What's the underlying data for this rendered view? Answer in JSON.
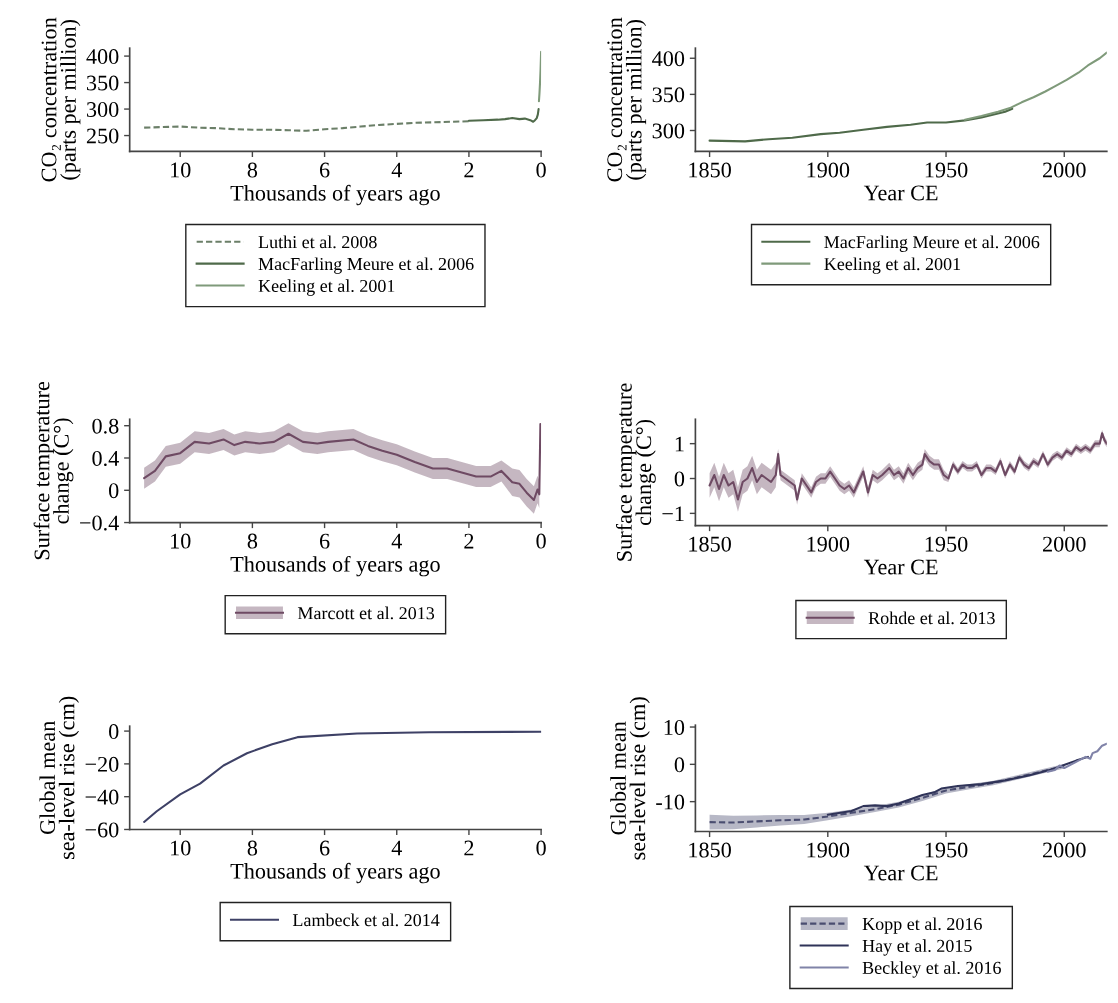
{
  "chart_data": [
    {
      "type": "line",
      "xlabel": "Thousands of years ago",
      "ylabel": "CO₂ concentration\n(parts per million)",
      "xlim": [
        11.4,
        0
      ],
      "xticks": [
        10,
        8,
        6,
        4,
        2,
        0
      ],
      "ylim": [
        220,
        415
      ],
      "yticks": [
        250,
        300,
        350,
        400
      ],
      "legend": "bottom",
      "series": [
        {
          "name": "Luthi et al. 2008",
          "color": "#6b7f68",
          "line_style": "dashed",
          "x": [
            11,
            10.5,
            10,
            9.5,
            9,
            8.5,
            8,
            7.5,
            7,
            6.5,
            6,
            5.5,
            5,
            4.5,
            4,
            3.5,
            3,
            2.5,
            2
          ],
          "values": [
            265,
            266,
            267,
            265,
            264,
            262,
            261,
            261,
            260,
            259,
            262,
            264,
            267,
            270,
            272,
            274,
            275,
            276,
            277
          ]
        },
        {
          "name": "MacFarling Meure et al. 2006",
          "color": "#4f6a4a",
          "line_style": "solid",
          "x": [
            2,
            1.6,
            1.2,
            1.0,
            0.8,
            0.6,
            0.45,
            0.3,
            0.22,
            0.17,
            0.12,
            0.09,
            0.07
          ],
          "values": [
            278,
            279,
            280,
            281,
            283,
            281,
            282,
            279,
            276,
            279,
            283,
            290,
            300
          ]
        },
        {
          "name": "Keeling et al. 2001",
          "color": "#7f9a7a",
          "line_style": "solid",
          "x": [
            0.06,
            0.045,
            0.03,
            0.015,
            0
          ],
          "values": [
            315,
            330,
            350,
            375,
            408
          ]
        }
      ]
    },
    {
      "type": "line",
      "xlabel": "Year CE",
      "ylabel": "CO₂ concentration\n(parts per million)",
      "xlim": [
        1844,
        2018
      ],
      "xticks": [
        1850,
        1900,
        1950,
        2000
      ],
      "ylim": [
        271,
        414
      ],
      "yticks": [
        300,
        350,
        400
      ],
      "legend": "bottom",
      "series": [
        {
          "name": "MacFarling Meure et al. 2006",
          "color": "#4f6a4a",
          "line_style": "solid",
          "x": [
            1850,
            1865,
            1875,
            1885,
            1897,
            1905,
            1915,
            1925,
            1935,
            1942,
            1950,
            1958,
            1965,
            1975,
            1978
          ],
          "values": [
            286,
            285,
            288,
            290,
            295,
            297,
            301,
            305,
            308,
            311,
            311,
            314,
            318,
            326,
            330
          ]
        },
        {
          "name": "Keeling et al. 2001",
          "color": "#7f9a7a",
          "line_style": "solid",
          "x": [
            1958,
            1965,
            1972,
            1977,
            1982,
            1987,
            1992,
            1996,
            2001,
            2006,
            2010,
            2015,
            2018
          ],
          "values": [
            315,
            320,
            326,
            331,
            339,
            346,
            354,
            361,
            370,
            380,
            390,
            400,
            408
          ]
        }
      ]
    },
    {
      "type": "line",
      "xlabel": "Thousands of years ago",
      "ylabel": "Surface temperature\nchange (C°)",
      "xlim": [
        11.4,
        0
      ],
      "xticks": [
        10,
        8,
        6,
        4,
        2,
        0
      ],
      "ylim": [
        -0.4,
        0.88
      ],
      "yticks": [
        {
          "value": -0.4,
          "label": "−0.4"
        },
        0,
        0.4,
        0.8
      ],
      "legend": "bottom",
      "series": [
        {
          "name": "Marcott et al. 2013",
          "color": "#6e4a63",
          "line_style": "solid",
          "x": [
            11,
            10.7,
            10.4,
            10,
            9.6,
            9.2,
            8.8,
            8.5,
            8.2,
            7.8,
            7.4,
            7.0,
            6.6,
            6.2,
            5.9,
            5.2,
            4.8,
            4.4,
            4.0,
            3.5,
            3.0,
            2.6,
            2.2,
            1.8,
            1.4,
            1.1,
            0.8,
            0.6,
            0.4,
            0.2,
            0.1,
            0.05,
            0.02
          ],
          "values": [
            0.15,
            0.24,
            0.42,
            0.46,
            0.6,
            0.58,
            0.63,
            0.56,
            0.6,
            0.58,
            0.6,
            0.7,
            0.6,
            0.58,
            0.6,
            0.63,
            0.55,
            0.49,
            0.44,
            0.35,
            0.27,
            0.27,
            0.22,
            0.17,
            0.17,
            0.24,
            0.1,
            0.08,
            -0.03,
            -0.12,
            0.01,
            -0.05,
            0.82
          ],
          "lower": [
            0.02,
            0.11,
            0.29,
            0.33,
            0.47,
            0.45,
            0.5,
            0.43,
            0.47,
            0.45,
            0.47,
            0.57,
            0.47,
            0.45,
            0.47,
            0.5,
            0.42,
            0.36,
            0.31,
            0.22,
            0.14,
            0.14,
            0.09,
            0.04,
            0.04,
            0.11,
            -0.07,
            -0.09,
            -0.2,
            -0.29,
            -0.16,
            -0.22,
            null
          ],
          "upper": [
            0.28,
            0.37,
            0.55,
            0.59,
            0.73,
            0.71,
            0.76,
            0.69,
            0.73,
            0.71,
            0.73,
            0.83,
            0.73,
            0.71,
            0.73,
            0.76,
            0.68,
            0.62,
            0.57,
            0.48,
            0.4,
            0.4,
            0.35,
            0.3,
            0.3,
            0.37,
            0.27,
            0.25,
            0.14,
            0.05,
            0.18,
            0.12,
            null
          ]
        }
      ]
    },
    {
      "type": "line",
      "xlabel": "Year CE",
      "ylabel": "Surface temperature\nchange (C°)",
      "xlim": [
        1844,
        2018
      ],
      "xticks": [
        1850,
        1900,
        1950,
        2000
      ],
      "ylim": [
        -1.35,
        1.7
      ],
      "yticks": [
        {
          "value": -1,
          "label": "−1"
        },
        0,
        1
      ],
      "legend": "bottom",
      "series": [
        {
          "name": "Rohde et al. 2013",
          "color": "#6e4a63",
          "line_style": "solid",
          "x": [
            1850,
            1852,
            1854,
            1856,
            1858,
            1860,
            1862,
            1864,
            1866,
            1868,
            1870,
            1872,
            1874,
            1876,
            1878,
            1879,
            1880,
            1882,
            1884,
            1886,
            1887,
            1889,
            1891,
            1893,
            1895,
            1897,
            1899,
            1901,
            1903,
            1905,
            1907,
            1909,
            1911,
            1913,
            1915,
            1917,
            1919,
            1921,
            1923,
            1926,
            1928,
            1930,
            1932,
            1934,
            1936,
            1938,
            1940,
            1941,
            1943,
            1945,
            1947,
            1949,
            1951,
            1953,
            1955,
            1957,
            1959,
            1961,
            1963,
            1965,
            1967,
            1969,
            1971,
            1973,
            1975,
            1977,
            1979,
            1981,
            1983,
            1985,
            1987,
            1989,
            1991,
            1993,
            1995,
            1997,
            1999,
            2001,
            2003,
            2005,
            2007,
            2009,
            2011,
            2013,
            2015,
            2016,
            2017,
            2018
          ],
          "values": [
            -0.2,
            0.1,
            -0.3,
            0.1,
            -0.2,
            -0.1,
            -0.6,
            -0.1,
            0.0,
            0.3,
            -0.1,
            0.1,
            0.0,
            -0.1,
            0.1,
            0.7,
            0.1,
            0.0,
            -0.1,
            -0.2,
            -0.6,
            0.0,
            -0.2,
            -0.4,
            -0.1,
            0.0,
            0.0,
            0.2,
            0.0,
            -0.2,
            -0.3,
            -0.2,
            -0.4,
            -0.1,
            0.2,
            -0.4,
            0.1,
            0.0,
            0.1,
            0.3,
            0.1,
            0.2,
            0.0,
            0.3,
            0.1,
            0.3,
            0.4,
            0.7,
            0.5,
            0.4,
            0.4,
            0.1,
            0.0,
            0.4,
            0.2,
            0.4,
            0.3,
            0.3,
            0.4,
            0.1,
            0.3,
            0.3,
            0.2,
            0.5,
            0.1,
            0.4,
            0.2,
            0.6,
            0.4,
            0.3,
            0.5,
            0.4,
            0.7,
            0.4,
            0.6,
            0.7,
            0.6,
            0.8,
            0.7,
            0.9,
            0.8,
            0.9,
            0.8,
            1.0,
            1.0,
            1.3,
            1.1,
            1.0
          ],
          "lower": [
            -0.55,
            -0.25,
            -0.65,
            -0.25,
            -0.55,
            -0.45,
            -0.95,
            -0.45,
            -0.35,
            -0.05,
            -0.45,
            -0.25,
            -0.35,
            -0.45,
            -0.25,
            0.55,
            -0.05,
            -0.15,
            -0.25,
            -0.35,
            -0.75,
            -0.15,
            -0.35,
            -0.55,
            -0.25,
            -0.15,
            -0.15,
            0.05,
            -0.15,
            -0.35,
            -0.45,
            -0.35,
            -0.55,
            -0.25,
            0.05,
            -0.55,
            -0.05,
            -0.15,
            -0.05,
            0.15,
            -0.05,
            0.05,
            -0.15,
            0.15,
            -0.05,
            0.15,
            0.25,
            0.55,
            0.35,
            0.25,
            0.25,
            -0.05,
            -0.1,
            0.3,
            0.1,
            0.3,
            0.2,
            0.2,
            0.3,
            0.0,
            0.2,
            0.2,
            0.1,
            0.4,
            0.0,
            0.3,
            0.1,
            0.5,
            0.3,
            0.2,
            0.4,
            0.3,
            0.6,
            0.3,
            0.5,
            0.6,
            0.5,
            0.7,
            0.6,
            0.8,
            0.7,
            0.8,
            0.7,
            0.9,
            0.9,
            1.2,
            1.0,
            0.9
          ],
          "upper": [
            0.15,
            0.45,
            0.05,
            0.45,
            0.15,
            0.25,
            -0.25,
            0.25,
            0.35,
            0.65,
            0.25,
            0.45,
            0.35,
            0.25,
            0.45,
            0.85,
            0.25,
            0.15,
            0.05,
            -0.05,
            -0.45,
            0.15,
            -0.05,
            -0.25,
            0.05,
            0.15,
            0.15,
            0.35,
            0.15,
            -0.05,
            -0.15,
            -0.05,
            -0.25,
            0.05,
            0.35,
            -0.25,
            0.25,
            0.15,
            0.25,
            0.45,
            0.25,
            0.35,
            0.15,
            0.45,
            0.25,
            0.45,
            0.55,
            0.85,
            0.65,
            0.55,
            0.55,
            0.25,
            0.1,
            0.5,
            0.3,
            0.5,
            0.4,
            0.4,
            0.5,
            0.2,
            0.4,
            0.4,
            0.3,
            0.6,
            0.2,
            0.5,
            0.3,
            0.7,
            0.5,
            0.4,
            0.6,
            0.5,
            0.8,
            0.5,
            0.7,
            0.8,
            0.7,
            0.9,
            0.8,
            1.0,
            0.9,
            1.0,
            0.9,
            1.1,
            1.1,
            1.4,
            1.2,
            1.1
          ]
        }
      ]
    },
    {
      "type": "line",
      "xlabel": "Thousands of years ago",
      "ylabel": "Global mean\nsea-level rise (cm)",
      "xlim": [
        11.4,
        0
      ],
      "xticks": [
        10,
        8,
        6,
        4,
        2,
        0
      ],
      "ylim": [
        -60,
        3
      ],
      "yticks": [
        {
          "value": -60,
          "label": "−60"
        },
        {
          "value": -40,
          "label": "−40"
        },
        {
          "value": -20,
          "label": "−20"
        },
        0
      ],
      "legend": "bottom",
      "series": [
        {
          "name": "Lambeck et al. 2014",
          "color": "#3e4166",
          "line_style": "solid",
          "x": [
            11,
            10.65,
            10,
            9.45,
            8.8,
            8.15,
            7.45,
            6.75,
            5.1,
            3.1,
            0
          ],
          "values": [
            -55.4,
            -48.9,
            -38.6,
            -32,
            -21,
            -13.5,
            -8,
            -3.7,
            -1.5,
            -0.7,
            -0.4
          ]
        }
      ]
    },
    {
      "type": "line",
      "xlabel": "Year CE",
      "ylabel": "Global mean\nsea-level rise (cm)",
      "xlim": [
        1844,
        2018
      ],
      "xticks": [
        1850,
        1900,
        1950,
        2000
      ],
      "ylim": [
        -18,
        10.5
      ],
      "yticks": [
        -10,
        0,
        10
      ],
      "legend": "bottom",
      "series": [
        {
          "name": "Kopp et al. 2016",
          "color": "#4a4d70",
          "line_style": "dashed",
          "x": [
            1850,
            1860,
            1870,
            1880,
            1890,
            1900,
            1910,
            1920,
            1930,
            1940,
            1950,
            1960,
            1970,
            1980,
            1990,
            2000
          ],
          "values": [
            -15.5,
            -15.6,
            -15.3,
            -15.0,
            -14.8,
            -14.0,
            -13.0,
            -12.0,
            -10.8,
            -9.0,
            -7.0,
            -6.0,
            -5.0,
            -3.5,
            -2.0,
            -0.5
          ],
          "lower": [
            -17.5,
            -17.4,
            -16.9,
            -16.4,
            -16.0,
            -15.0,
            -13.9,
            -12.8,
            -11.6,
            -9.8,
            -7.8,
            -6.7,
            -5.6,
            -4.1,
            -2.6,
            -1.1
          ],
          "upper": [
            -13.5,
            -13.8,
            -13.7,
            -13.6,
            -13.6,
            -13.0,
            -12.1,
            -11.2,
            -10.0,
            -8.2,
            -6.2,
            -5.3,
            -4.4,
            -2.9,
            -1.4,
            0.1
          ]
        },
        {
          "name": "Hay et al. 2015",
          "color": "#2f3358",
          "line_style": "solid",
          "x": [
            1900,
            1910,
            1915,
            1920,
            1925,
            1930,
            1940,
            1945,
            1948,
            1955,
            1965,
            1975,
            1985,
            1995,
            2005,
            2010
          ],
          "values": [
            -13.5,
            -12.5,
            -11.2,
            -11,
            -11.2,
            -10.5,
            -8.2,
            -7.5,
            -6.5,
            -5.8,
            -5.3,
            -4.3,
            -3,
            -1.3,
            1,
            2
          ]
        },
        {
          "name": "Beckley et al. 2016",
          "color": "#8083a8",
          "line_style": "solid",
          "x": [
            1993,
            1996,
            1998,
            2000,
            2003,
            2006,
            2009,
            2011,
            2012,
            2014,
            2016,
            2018
          ],
          "values": [
            -2,
            -1.5,
            -0.3,
            -1,
            0,
            1,
            2,
            1.5,
            3,
            3.5,
            5,
            5.5
          ]
        }
      ]
    }
  ]
}
